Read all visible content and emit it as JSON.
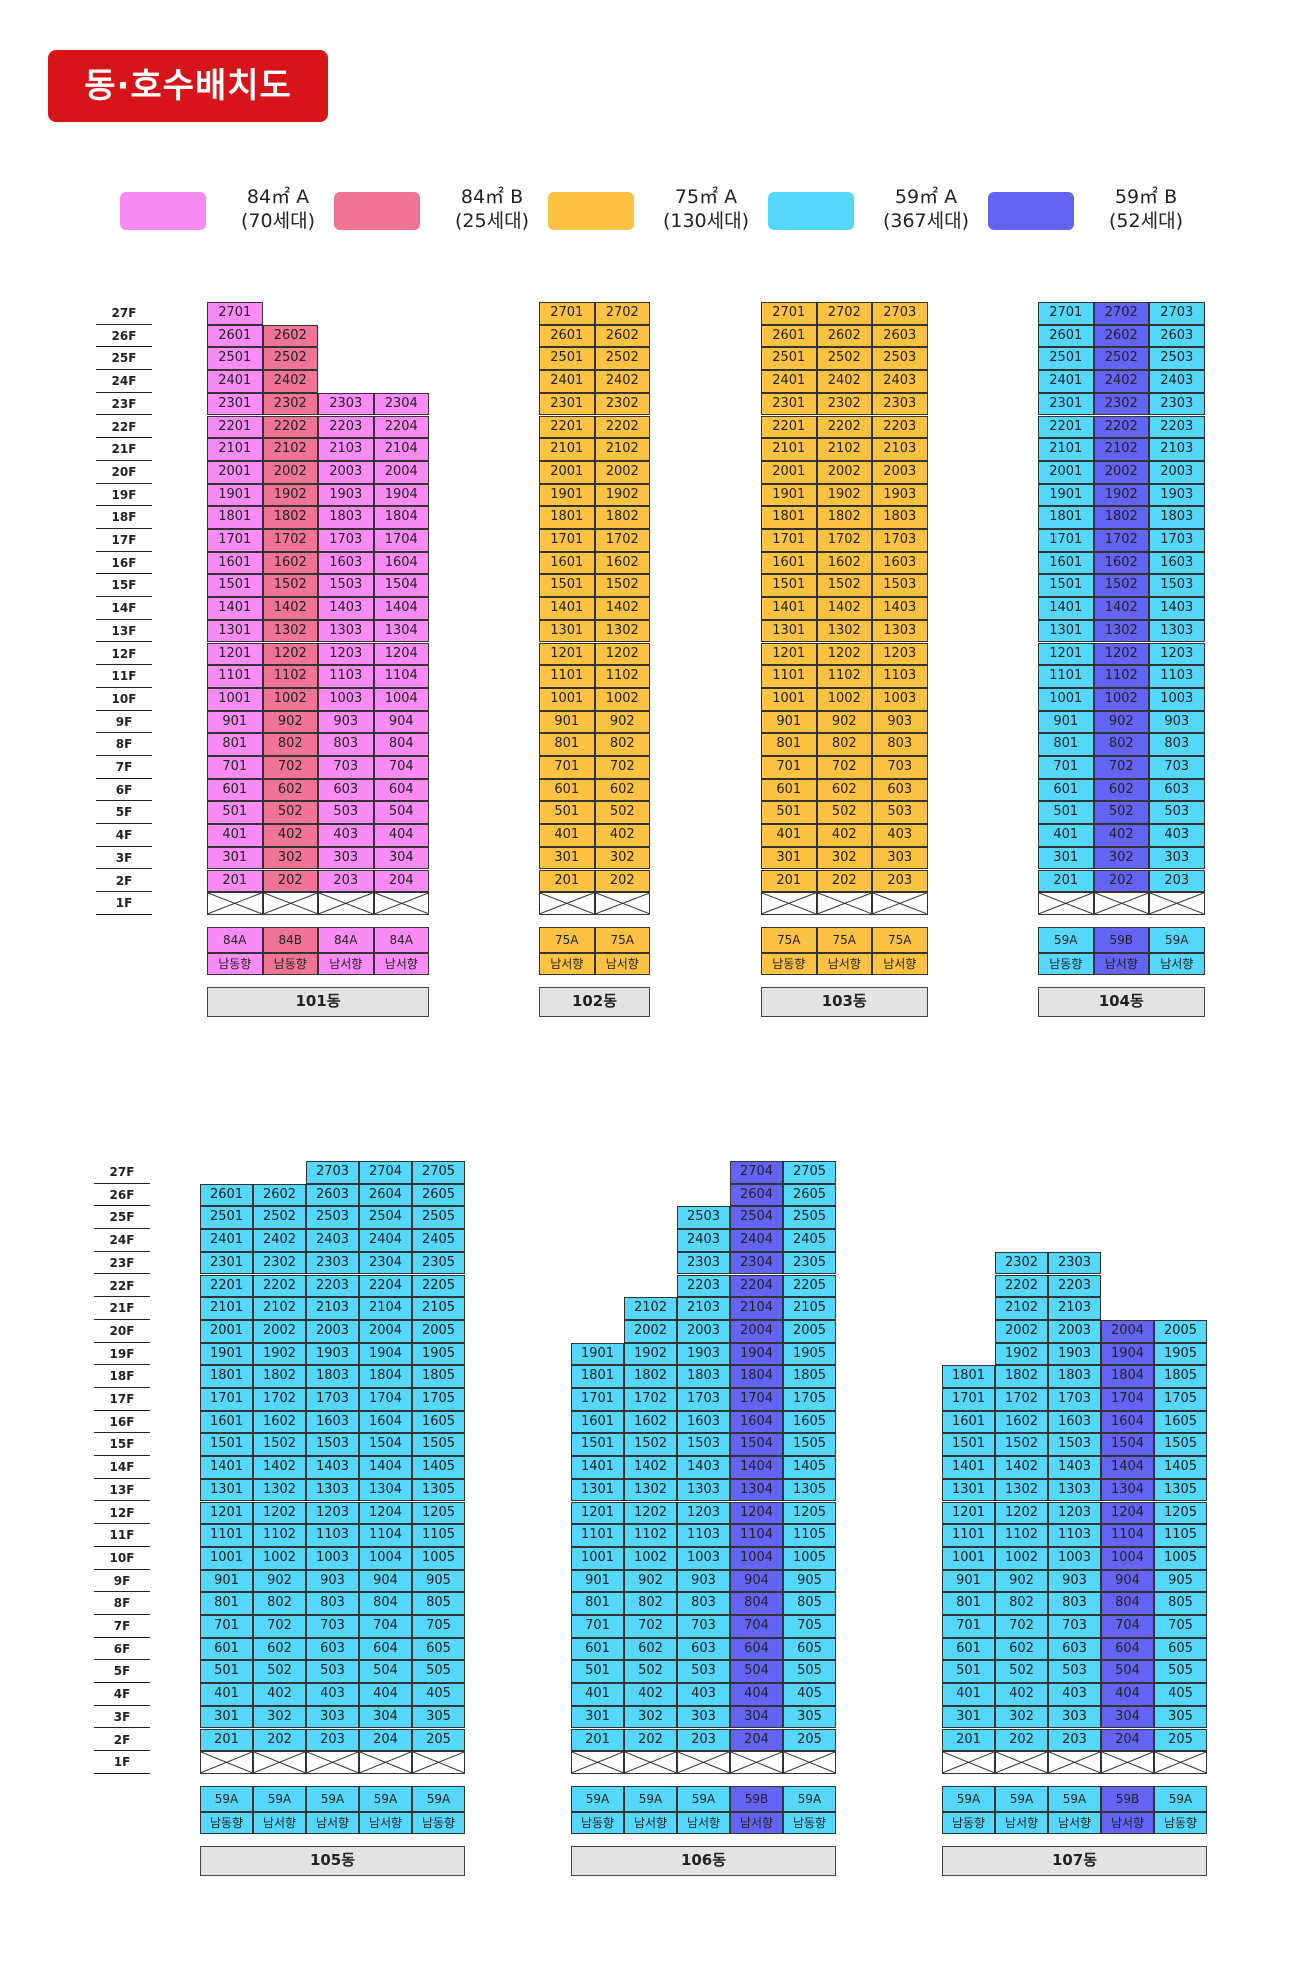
{
  "header": {
    "title": "동·호수배치도"
  },
  "legend": [
    {
      "name": "84㎡ A",
      "count": "(70세대)",
      "color": "#f98cf4"
    },
    {
      "name": "84㎡ B",
      "count": "(25세대)",
      "color": "#f07594"
    },
    {
      "name": "75㎡ A",
      "count": "(130세대)",
      "color": "#fcc242"
    },
    {
      "name": "59㎡ A",
      "count": "(367세대)",
      "color": "#55d7fa"
    },
    {
      "name": "59㎡ B",
      "count": "(52세대)",
      "color": "#6464f4"
    }
  ],
  "floor_labels_top": [
    "27F",
    "26F",
    "25F",
    "24F",
    "23F",
    "22F",
    "21F",
    "20F",
    "19F",
    "18F",
    "17F",
    "16F",
    "15F",
    "14F",
    "13F",
    "12F",
    "11F",
    "10F",
    "9F",
    "8F",
    "7F",
    "6F",
    "5F",
    "4F",
    "3F",
    "2F",
    "1F"
  ],
  "floor_labels_bottom": [
    "27F",
    "26F",
    "25F",
    "24F",
    "23F",
    "22F",
    "21F",
    "20F",
    "19F",
    "18F",
    "17F",
    "16F",
    "15F",
    "14F",
    "13F",
    "12F",
    "11F",
    "10F",
    "9F",
    "8F",
    "7F",
    "6F",
    "5F",
    "4F",
    "3F",
    "2F",
    "1F"
  ],
  "buildings": [
    {
      "name": "101동",
      "columns": [
        {
          "line": "01",
          "top_floor": 27,
          "type": "84A",
          "direction": "남동향",
          "color": "#f98cf4"
        },
        {
          "line": "02",
          "top_floor": 26,
          "type": "84B",
          "direction": "남동향",
          "color": "#f07594"
        },
        {
          "line": "03",
          "top_floor": 23,
          "type": "84A",
          "direction": "남서향",
          "color": "#f98cf4"
        },
        {
          "line": "04",
          "top_floor": 23,
          "type": "84A",
          "direction": "남서향",
          "color": "#f98cf4"
        }
      ]
    },
    {
      "name": "102동",
      "columns": [
        {
          "line": "01",
          "top_floor": 27,
          "type": "75A",
          "direction": "남서향",
          "color": "#fcc242"
        },
        {
          "line": "02",
          "top_floor": 27,
          "type": "75A",
          "direction": "남서향",
          "color": "#fcc242"
        }
      ]
    },
    {
      "name": "103동",
      "columns": [
        {
          "line": "01",
          "top_floor": 27,
          "type": "75A",
          "direction": "남동향",
          "color": "#fcc242"
        },
        {
          "line": "02",
          "top_floor": 27,
          "type": "75A",
          "direction": "남서향",
          "color": "#fcc242"
        },
        {
          "line": "03",
          "top_floor": 27,
          "type": "75A",
          "direction": "남서향",
          "color": "#fcc242"
        }
      ]
    },
    {
      "name": "104동",
      "columns": [
        {
          "line": "01",
          "top_floor": 27,
          "type": "59A",
          "direction": "남동향",
          "color": "#55d7fa"
        },
        {
          "line": "02",
          "top_floor": 27,
          "type": "59B",
          "direction": "남서향",
          "color": "#6464f4"
        },
        {
          "line": "03",
          "top_floor": 27,
          "type": "59A",
          "direction": "남서향",
          "color": "#55d7fa"
        }
      ]
    },
    {
      "name": "105동",
      "columns": [
        {
          "line": "01",
          "top_floor": 26,
          "type": "59A",
          "direction": "남동향",
          "color": "#55d7fa"
        },
        {
          "line": "02",
          "top_floor": 26,
          "type": "59A",
          "direction": "남서향",
          "color": "#55d7fa"
        },
        {
          "line": "03",
          "top_floor": 27,
          "type": "59A",
          "direction": "남서향",
          "color": "#55d7fa"
        },
        {
          "line": "04",
          "top_floor": 27,
          "type": "59A",
          "direction": "남서향",
          "color": "#55d7fa"
        },
        {
          "line": "05",
          "top_floor": 27,
          "type": "59A",
          "direction": "남동향",
          "color": "#55d7fa"
        }
      ]
    },
    {
      "name": "106동",
      "columns": [
        {
          "line": "01",
          "top_floor": 19,
          "type": "59A",
          "direction": "남동향",
          "color": "#55d7fa"
        },
        {
          "line": "02",
          "top_floor": 21,
          "type": "59A",
          "direction": "남서향",
          "color": "#55d7fa"
        },
        {
          "line": "03",
          "top_floor": 25,
          "type": "59A",
          "direction": "남서향",
          "color": "#55d7fa"
        },
        {
          "line": "04",
          "top_floor": 27,
          "type": "59B",
          "direction": "남서향",
          "color": "#6464f4"
        },
        {
          "line": "05",
          "top_floor": 27,
          "type": "59A",
          "direction": "남동향",
          "color": "#55d7fa"
        }
      ]
    },
    {
      "name": "107동",
      "columns": [
        {
          "line": "01",
          "top_floor": 18,
          "type": "59A",
          "direction": "남동향",
          "color": "#55d7fa"
        },
        {
          "line": "02",
          "top_floor": 23,
          "type": "59A",
          "direction": "남서향",
          "color": "#55d7fa"
        },
        {
          "line": "03",
          "top_floor": 23,
          "type": "59A",
          "direction": "남서향",
          "color": "#55d7fa"
        },
        {
          "line": "04",
          "top_floor": 20,
          "type": "59B",
          "direction": "남서향",
          "color": "#6464f4"
        },
        {
          "line": "05",
          "top_floor": 20,
          "type": "59A",
          "direction": "남동향",
          "color": "#55d7fa"
        }
      ]
    }
  ]
}
